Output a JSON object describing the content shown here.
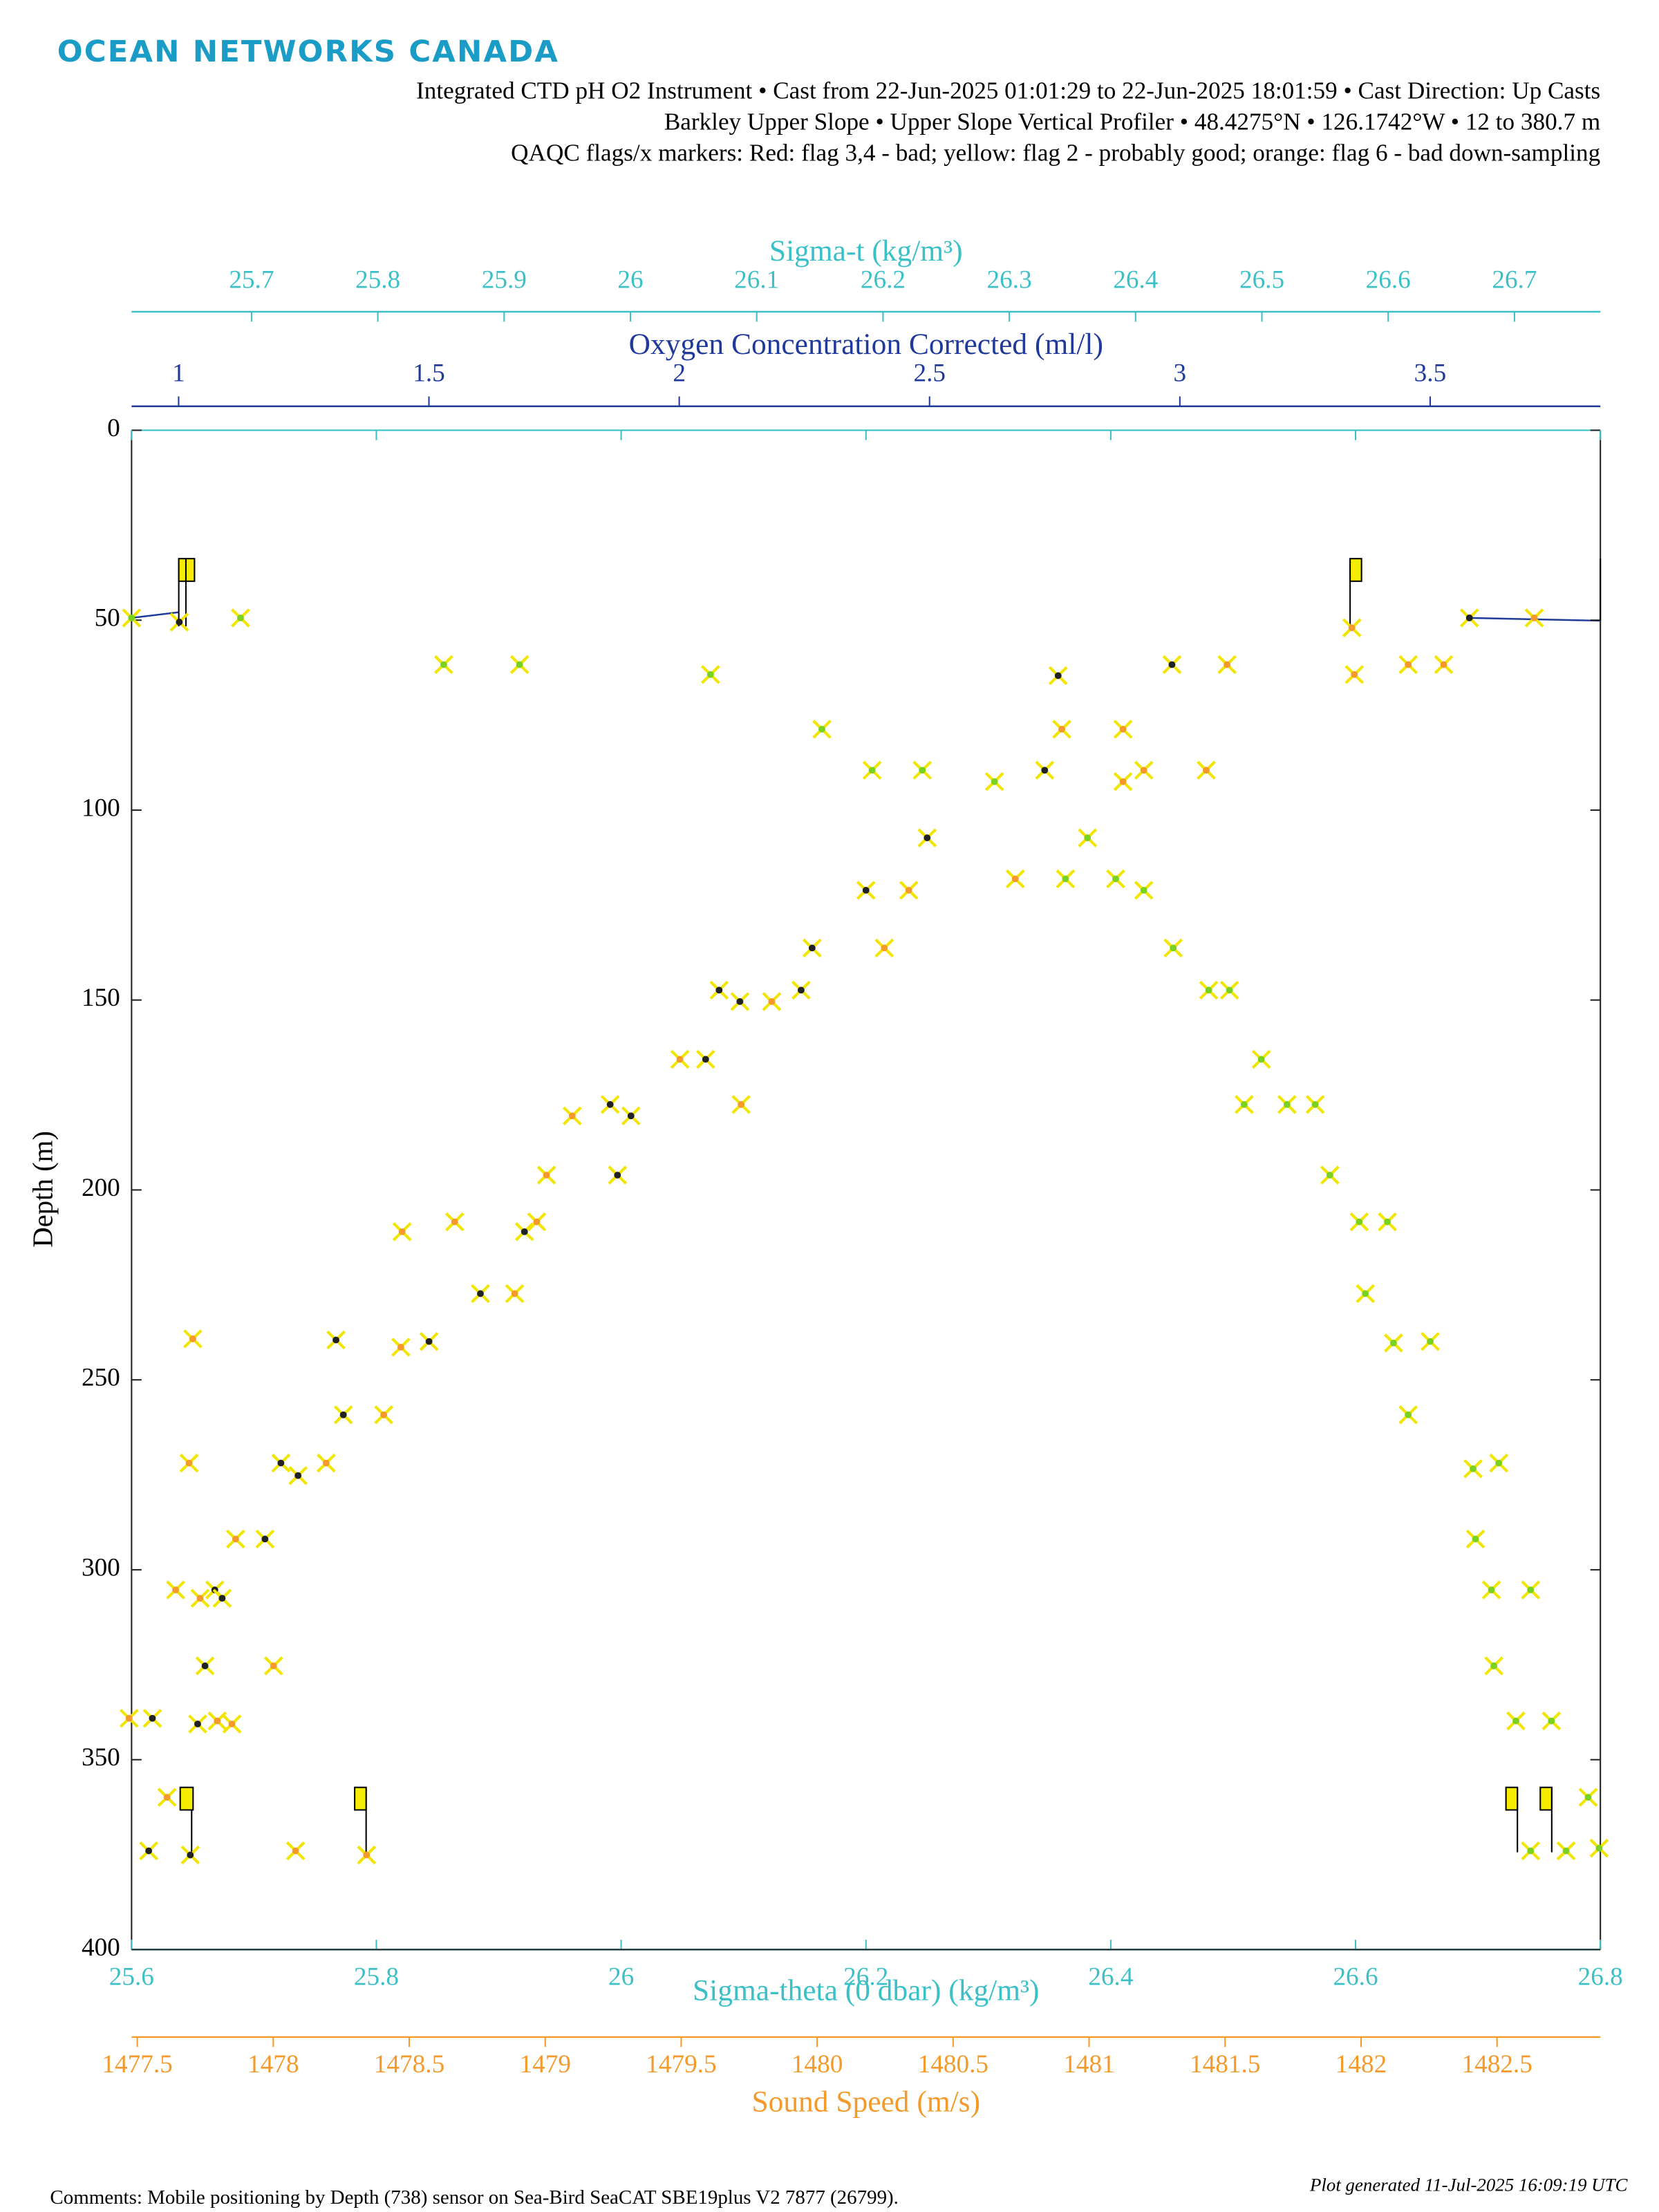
{
  "chart_data": {
    "type": "scatter",
    "title": "OCEAN NETWORKS CANADA",
    "subtitles": [
      "Integrated CTD pH O2 Instrument • Cast from 22-Jun-2025 01:01:29 to 22-Jun-2025 18:01:59 • Cast Direction: Up Casts",
      "Barkley Upper Slope • Upper Slope Vertical Profiler • 48.4275°N • 126.1742°W • 12 to 380.7 m",
      "QAQC flags/x markers: Red: flag 3,4 - bad; yellow: flag 2 - probably good; orange: flag 6 - bad down-sampling"
    ],
    "ylabel": "Depth (m)",
    "ylim": [
      0,
      400
    ],
    "yticks": [
      0,
      50,
      100,
      150,
      200,
      250,
      300,
      350,
      400
    ],
    "y_inverted": true,
    "xlabel": "Sigma-theta (0 dbar) (kg/m³)",
    "xlim": [
      25.6,
      26.8
    ],
    "xticks": [
      25.6,
      25.8,
      26,
      26.2,
      26.4,
      26.6,
      26.8
    ],
    "x_color": "#3cc0c8",
    "x2label": "Sound Speed (m/s)",
    "x2lim": [
      1477.479,
      1482.88
    ],
    "x2ticks": [
      1477.5,
      1478,
      1478.5,
      1479,
      1479.5,
      1480,
      1480.5,
      1481,
      1481.5,
      1482,
      1482.5
    ],
    "x2_color": "#f39a2b",
    "x3label": "Sigma-t (kg/m³)",
    "x3lim": [
      25.605,
      26.768
    ],
    "x3ticks": [
      25.7,
      25.8,
      25.9,
      26,
      26.1,
      26.2,
      26.3,
      26.4,
      26.5,
      26.6,
      26.7
    ],
    "x3_color": "#3cc0c8",
    "x4label": "Oxygen Concentration Corrected (ml/l)",
    "x4lim": [
      0.906,
      3.84
    ],
    "x4ticks": [
      1,
      1.5,
      2,
      2.5,
      3,
      3.5
    ],
    "x4_color": "#1f3a9a",
    "marker_color": "#f2e600",
    "series": [
      {
        "color": "#7bd11f",
        "x": [
          25.6,
          25.689,
          25.855,
          25.917,
          26.073,
          26.164,
          26.205,
          26.246,
          26.305,
          26.381,
          26.363,
          26.404,
          26.427,
          26.451,
          26.48,
          26.497,
          26.523,
          26.509,
          26.544,
          26.567,
          26.579,
          26.603,
          26.626,
          26.608,
          26.631,
          26.661,
          26.643,
          26.696,
          26.717,
          26.698,
          26.711,
          26.743,
          26.713,
          26.731,
          26.76,
          26.79,
          26.743,
          26.772,
          26.799
        ],
        "values": [
          49.4,
          49.4,
          61.7,
          61.7,
          64.3,
          78.7,
          89.5,
          89.5,
          92.5,
          107.3,
          118.1,
          118.1,
          121.1,
          136.3,
          147.4,
          147.4,
          165.6,
          177.5,
          177.5,
          177.5,
          196.1,
          208.4,
          208.4,
          227.3,
          240.3,
          239.9,
          259.2,
          273.4,
          271.9,
          291.9,
          305.3,
          305.3,
          325.3,
          339.8,
          339.8,
          359.9,
          374.0,
          374.0,
          373.3
        ]
      },
      {
        "color": "#222222",
        "x": [
          26.357,
          26.45,
          26.346,
          26.25,
          26.2,
          26.156,
          26.08,
          26.097,
          26.147,
          26.069,
          25.991,
          26.008,
          25.997,
          25.921,
          25.885,
          25.843,
          25.767,
          25.773,
          25.722,
          25.736,
          25.709,
          25.668,
          25.674,
          25.66,
          25.617,
          25.654,
          25.614,
          25.648,
          25.639,
          26.693
        ],
        "values": [
          64.6,
          61.7,
          89.5,
          107.3,
          121.1,
          136.3,
          147.4,
          150.4,
          147.4,
          165.6,
          177.5,
          180.5,
          196.1,
          211.0,
          227.3,
          239.9,
          239.5,
          259.2,
          271.9,
          275.2,
          291.9,
          305.3,
          307.5,
          325.3,
          339.1,
          340.6,
          374.0,
          375.1,
          50.5,
          49.4
        ]
      },
      {
        "color": "#f39a2b",
        "x": [
          26.36,
          26.41,
          26.427,
          26.41,
          26.478,
          26.495,
          26.599,
          26.643,
          26.672,
          26.746,
          26.322,
          26.235,
          26.215,
          26.123,
          26.048,
          26.098,
          25.96,
          25.939,
          25.931,
          25.864,
          25.821,
          25.913,
          25.82,
          25.806,
          25.759,
          25.647,
          25.685,
          25.636,
          25.656,
          25.716,
          25.67,
          25.682,
          25.629,
          25.65,
          25.734,
          25.792,
          25.598,
          26.597
        ],
        "values": [
          78.7,
          78.7,
          89.5,
          92.5,
          89.5,
          61.7,
          64.3,
          61.7,
          61.7,
          49.4,
          118.1,
          121.1,
          136.3,
          150.4,
          165.6,
          177.5,
          180.5,
          196.1,
          208.4,
          208.4,
          211.0,
          227.3,
          241.4,
          259.2,
          271.9,
          271.9,
          291.9,
          305.3,
          307.5,
          325.3,
          339.8,
          340.6,
          359.9,
          239.2,
          374.0,
          375.1,
          339.1,
          52.0
        ]
      }
    ],
    "footer_comment": "Comments: Mobile positioning by Depth (738) sensor on Sea-Bird SeaCAT SBE19plus V2 7877 (26799).",
    "footer_generated": "Plot generated 11-Jul-2025 16:09:19 UTC"
  }
}
